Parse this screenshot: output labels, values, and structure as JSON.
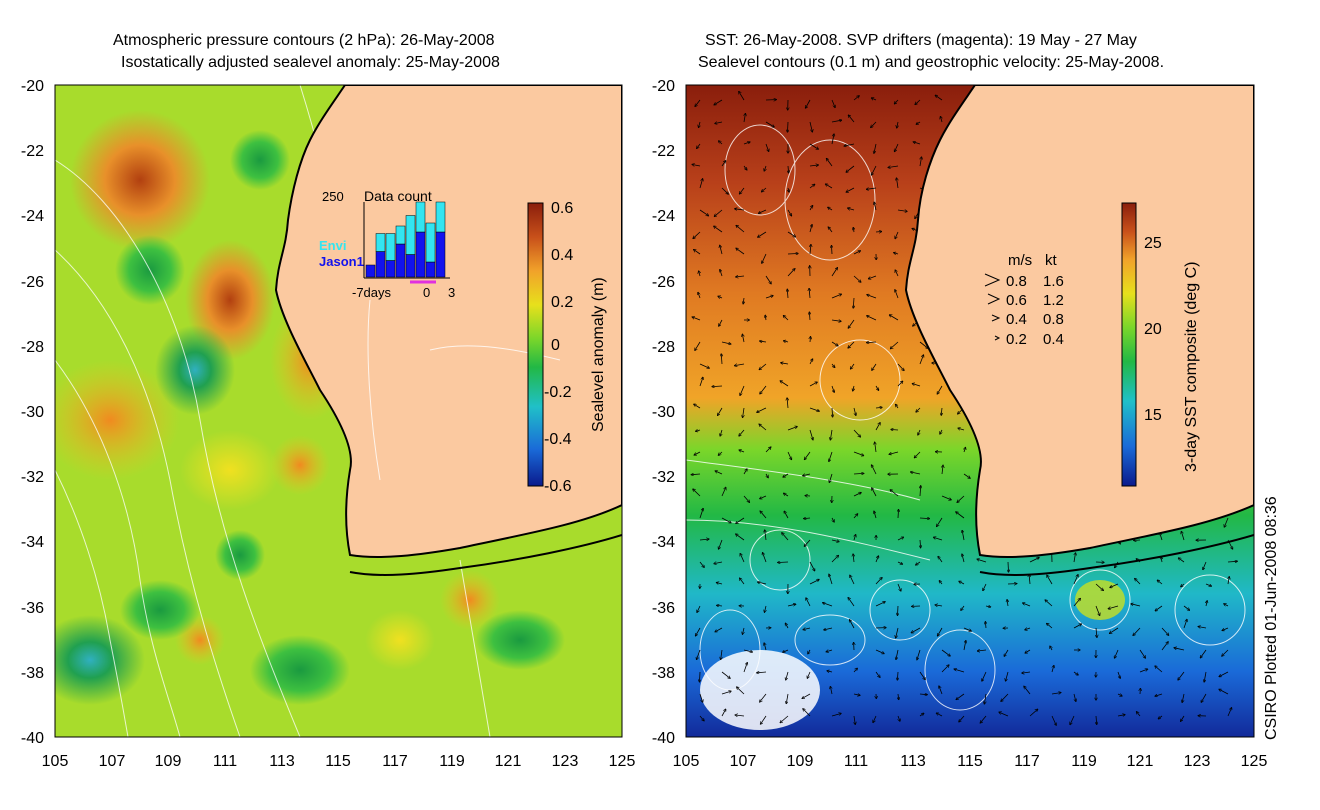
{
  "left_panel": {
    "title_line1": "Atmospheric pressure contours (2 hPa): 26-May-2008",
    "title_line2": "Isostatically adjusted sealevel anomaly: 25-May-2008",
    "colorbar": {
      "label": "Sealevel anomaly (m)",
      "ticks": [
        "0.6",
        "0.4",
        "0.2",
        "0",
        "-0.2",
        "-0.4",
        "-0.6"
      ]
    },
    "inset": {
      "title": "Data count",
      "ymax_label": "250",
      "series_envi": "Envi",
      "series_jason": "Jason1",
      "xlabel_left": "-7days",
      "xlabel_zero": "0",
      "xlabel_right": "3",
      "envi_color": "#33e5f0",
      "jason_color": "#1212ee",
      "chart_data": {
        "type": "bar",
        "title": "Data count",
        "stacked": true,
        "ylim": [
          0,
          250
        ],
        "x": [
          -7,
          -6,
          -5,
          -4,
          -3,
          -2,
          -1,
          0
        ],
        "series": [
          {
            "name": "Jason1",
            "values": [
              40,
              85,
              55,
              110,
              75,
              150,
              50,
              150
            ]
          },
          {
            "name": "Envi",
            "values": [
              0,
              60,
              90,
              60,
              130,
              100,
              130,
              100
            ]
          }
        ]
      }
    }
  },
  "right_panel": {
    "title_line1": "SST: 26-May-2008. SVP drifters (magenta): 19 May - 27 May",
    "title_line2": "Sealevel contours (0.1 m) and geostrophic velocity: 25-May-2008.",
    "colorbar": {
      "label": "3-day SST composite (deg C)",
      "ticks": [
        "25",
        "20",
        "15"
      ]
    },
    "velocity_legend": {
      "header_ms": "m/s",
      "header_kt": "kt",
      "rows": [
        {
          "ms": "0.8",
          "kt": "1.6"
        },
        {
          "ms": "0.6",
          "kt": "1.2"
        },
        {
          "ms": "0.4",
          "kt": "0.8"
        },
        {
          "ms": "0.2",
          "kt": "0.4"
        }
      ]
    }
  },
  "axes": {
    "y_ticks": [
      "-20",
      "-22",
      "-24",
      "-26",
      "-28",
      "-30",
      "-32",
      "-34",
      "-36",
      "-38",
      "-40"
    ],
    "x_ticks": [
      "105",
      "107",
      "109",
      "111",
      "113",
      "115",
      "117",
      "119",
      "121",
      "123",
      "125"
    ]
  },
  "credit": "CSIRO Plotted 01-Jun-2008 08:36",
  "colors": {
    "land": "#fbc9a0",
    "sla_scale": [
      "#0a1a8c",
      "#1a6ad8",
      "#20c0c8",
      "#22b845",
      "#7ad62a",
      "#e7e01c",
      "#f1a22a",
      "#c8501a",
      "#8a1e0c"
    ],
    "sst_scale": [
      "#0a1a8c",
      "#1a6ad8",
      "#20c0c8",
      "#22b845",
      "#7ad62a",
      "#e7e01c",
      "#f1a22a",
      "#c8501a",
      "#8a1e0c"
    ]
  }
}
